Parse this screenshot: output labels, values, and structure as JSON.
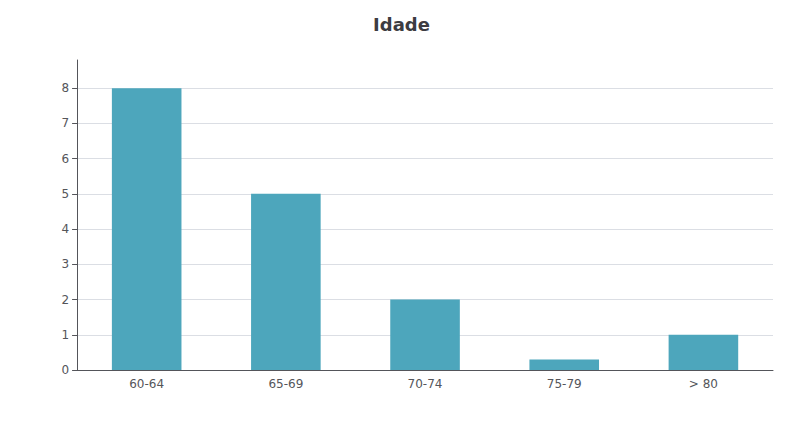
{
  "chart_data": {
    "type": "bar",
    "title": "Idade",
    "categories": [
      "60-64",
      "65-69",
      "70-74",
      "75-79",
      "> 80"
    ],
    "values": [
      8,
      5,
      2,
      0.3,
      1
    ],
    "color": "#4DA6BC",
    "ylim": [
      0,
      8.8
    ],
    "yticks": [
      0,
      1,
      2,
      3,
      4,
      5,
      6,
      7,
      8
    ],
    "grid": true
  }
}
